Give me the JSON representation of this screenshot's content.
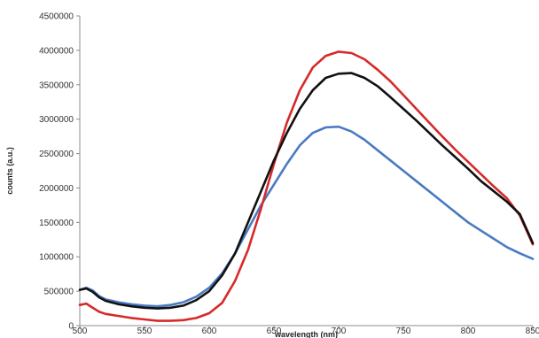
{
  "chart_data": {
    "type": "line",
    "title": "",
    "xlabel": "wavelength (nm)",
    "ylabel": "counts (a.u.)",
    "xlim": [
      500,
      850
    ],
    "ylim": [
      0,
      4500000
    ],
    "x_ticks": [
      500,
      550,
      600,
      650,
      700,
      750,
      800,
      850
    ],
    "y_ticks": [
      0,
      500000,
      1000000,
      1500000,
      2000000,
      2500000,
      3000000,
      3500000,
      4000000,
      4500000
    ],
    "grid": false,
    "legend": "none",
    "series": [
      {
        "color": "#4a7ac4",
        "x": [
          500,
          505,
          510,
          515,
          520,
          530,
          540,
          550,
          560,
          570,
          580,
          590,
          600,
          610,
          620,
          630,
          640,
          650,
          660,
          670,
          680,
          690,
          700,
          710,
          720,
          730,
          740,
          750,
          760,
          770,
          780,
          790,
          800,
          810,
          820,
          830,
          840,
          850
        ],
        "y": [
          520000,
          550000,
          510000,
          430000,
          380000,
          340000,
          310000,
          290000,
          280000,
          300000,
          340000,
          420000,
          550000,
          760000,
          1050000,
          1400000,
          1750000,
          2050000,
          2350000,
          2620000,
          2800000,
          2880000,
          2890000,
          2820000,
          2700000,
          2550000,
          2400000,
          2250000,
          2100000,
          1950000,
          1800000,
          1650000,
          1500000,
          1380000,
          1260000,
          1140000,
          1050000,
          970000
        ]
      },
      {
        "color": "#d62a2a",
        "x": [
          500,
          505,
          510,
          515,
          520,
          530,
          540,
          550,
          560,
          570,
          580,
          590,
          600,
          610,
          620,
          630,
          640,
          650,
          660,
          670,
          680,
          690,
          700,
          710,
          720,
          730,
          740,
          750,
          760,
          770,
          780,
          790,
          800,
          810,
          820,
          830,
          840,
          850
        ],
        "y": [
          300000,
          320000,
          260000,
          200000,
          170000,
          140000,
          110000,
          90000,
          70000,
          70000,
          80000,
          110000,
          180000,
          330000,
          650000,
          1100000,
          1700000,
          2350000,
          2950000,
          3420000,
          3750000,
          3920000,
          3980000,
          3960000,
          3870000,
          3720000,
          3550000,
          3350000,
          3150000,
          2950000,
          2750000,
          2560000,
          2380000,
          2200000,
          2020000,
          1850000,
          1600000,
          1180000
        ]
      },
      {
        "color": "#111111",
        "x": [
          500,
          505,
          510,
          515,
          520,
          530,
          540,
          550,
          560,
          570,
          580,
          590,
          600,
          610,
          620,
          630,
          640,
          650,
          660,
          670,
          680,
          690,
          700,
          710,
          720,
          730,
          740,
          750,
          760,
          770,
          780,
          790,
          800,
          810,
          820,
          830,
          840,
          850
        ],
        "y": [
          520000,
          540000,
          490000,
          410000,
          360000,
          310000,
          280000,
          260000,
          250000,
          260000,
          290000,
          370000,
          500000,
          730000,
          1050000,
          1500000,
          1950000,
          2400000,
          2800000,
          3150000,
          3420000,
          3600000,
          3660000,
          3670000,
          3600000,
          3480000,
          3320000,
          3150000,
          2980000,
          2800000,
          2620000,
          2450000,
          2280000,
          2100000,
          1950000,
          1800000,
          1620000,
          1200000
        ]
      }
    ]
  }
}
